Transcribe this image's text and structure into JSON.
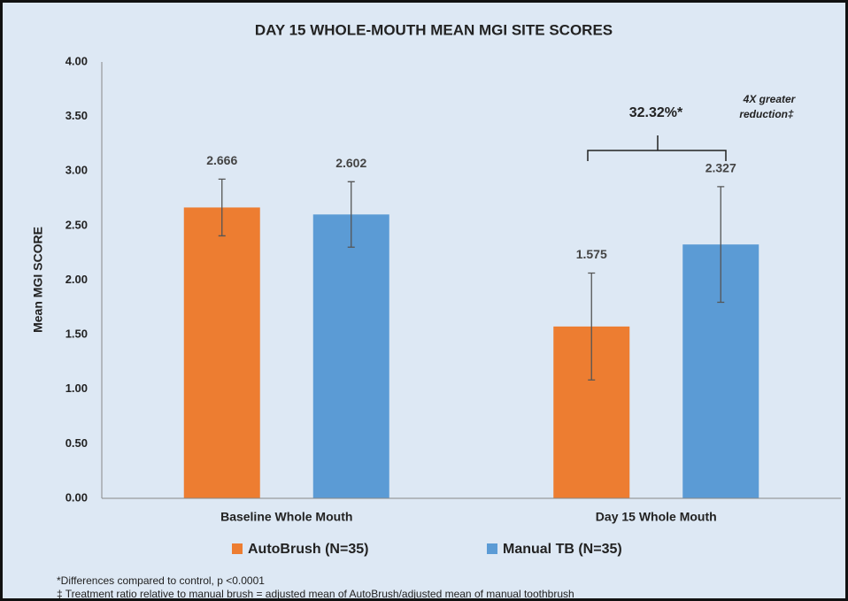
{
  "chart_data": {
    "type": "bar",
    "title": "DAY 15 WHOLE-MOUTH MEAN MGI SITE SCORES",
    "y_label": "Mean MGI SCORE",
    "categories": [
      "Baseline Whole Mouth",
      "Day 15 Whole Mouth"
    ],
    "series": [
      {
        "name": "AutoBrush (N=35)",
        "color": "#ed7d31",
        "values": [
          2.666,
          1.575
        ],
        "errors": [
          0.26,
          0.49
        ]
      },
      {
        "name": "Manual TB (N=35)",
        "color": "#5b9bd5",
        "values": [
          2.602,
          2.327
        ],
        "errors": [
          0.3,
          0.53
        ]
      }
    ],
    "ylim": [
      0,
      4
    ],
    "yticks": [
      {
        "value": 0,
        "label": "0.00"
      },
      {
        "value": 0.5,
        "label": "0.50"
      },
      {
        "value": 1,
        "label": "1.00"
      },
      {
        "value": 1.5,
        "label": "1.50"
      },
      {
        "value": 2,
        "label": "2.00"
      },
      {
        "value": 2.5,
        "label": "2.50"
      },
      {
        "value": 3,
        "label": "3.00"
      },
      {
        "value": 3.5,
        "label": "3.50"
      },
      {
        "value": 4,
        "label": "4.00"
      }
    ],
    "annotations": [
      "32.32%*",
      "4X greater",
      "reduction‡"
    ],
    "footnotes": [
      "*Differences compared to control, p <0.0001",
      "‡ Treatment ratio relative to manual brush = adjusted mean of AutoBrush/adjusted mean of manual toothbrush"
    ]
  }
}
